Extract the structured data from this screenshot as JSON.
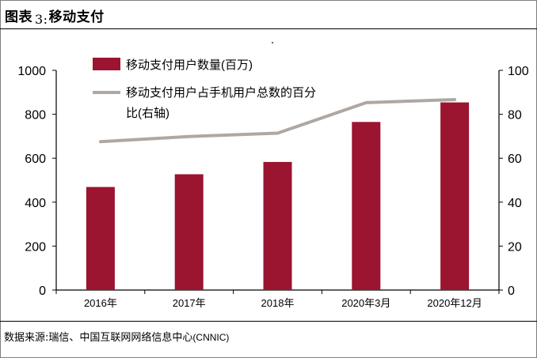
{
  "header": {
    "label": "图表",
    "number": "3:",
    "title": "移动支付"
  },
  "source": {
    "prefix": "数据来源",
    "text": ":瑞信、中国互联网网络信息中心",
    "en": "(CNNIC)"
  },
  "chart_data": {
    "type": "bar",
    "categories": [
      "2016年",
      "2017年",
      "2018年",
      "2020年3月",
      "2020年12月"
    ],
    "series": [
      {
        "name": "移动支付用户数量(百万)",
        "type": "bar",
        "axis": "left",
        "color": "#9b1430",
        "values": [
          469,
          527,
          583,
          765,
          854
        ]
      },
      {
        "name": "移动支付用户占手机用户总数的百分比(右轴)",
        "legend_lines": [
          "移动支付用户占手机用户总数的百分",
          "比(右轴)"
        ],
        "type": "line",
        "axis": "right",
        "color": "#afa7a2",
        "values": [
          67.5,
          69.9,
          71.4,
          85.3,
          86.7
        ]
      }
    ],
    "ylim_left": [
      0,
      1000
    ],
    "yticks_left": [
      "0",
      "200",
      "400",
      "600",
      "800",
      "1000"
    ],
    "ylim_right": [
      0,
      100
    ],
    "yticks_right": [
      "0",
      "20",
      "40",
      "60",
      "80",
      "100"
    ],
    "grid": false,
    "legend_position": "top-center"
  }
}
